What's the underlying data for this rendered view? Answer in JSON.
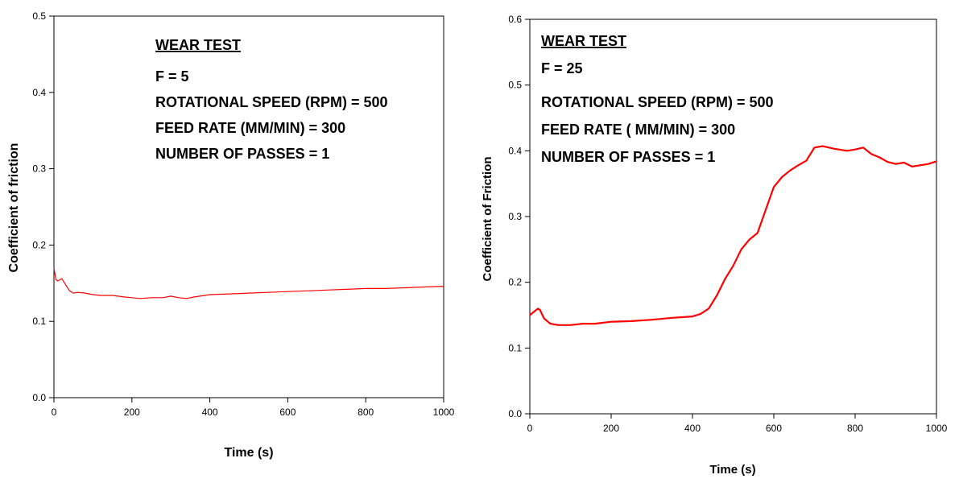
{
  "chart_data": [
    {
      "type": "line",
      "xlabel": "Time (s)",
      "ylabel": "Coefficient of friction",
      "xlim": [
        0,
        1000
      ],
      "ylim": [
        0,
        0.5
      ],
      "xticks": [
        "0",
        "200",
        "400",
        "600",
        "800",
        "1000"
      ],
      "yticks": [
        "0.0",
        "0.1",
        "0.2",
        "0.3",
        "0.4",
        "0.5"
      ],
      "grid": false,
      "annotation": {
        "title": "WEAR TEST",
        "lines": [
          "F = 5",
          "ROTATIONAL SPEED (RPM) = 500",
          "FEED RATE (MM/MIN) = 300",
          "NUMBER OF PASSES = 1"
        ]
      },
      "series": [
        {
          "color": "#ff0000",
          "x": [
            0,
            5,
            10,
            20,
            30,
            40,
            50,
            60,
            80,
            100,
            120,
            150,
            180,
            200,
            220,
            250,
            280,
            300,
            320,
            340,
            360,
            400,
            450,
            500,
            550,
            600,
            650,
            700,
            750,
            800,
            850,
            900,
            950,
            1000
          ],
          "y": [
            0.17,
            0.155,
            0.153,
            0.156,
            0.148,
            0.14,
            0.137,
            0.138,
            0.137,
            0.135,
            0.134,
            0.134,
            0.132,
            0.131,
            0.13,
            0.131,
            0.131,
            0.133,
            0.131,
            0.13,
            0.132,
            0.135,
            0.136,
            0.137,
            0.138,
            0.139,
            0.14,
            0.141,
            0.142,
            0.143,
            0.143,
            0.144,
            0.145,
            0.146
          ]
        }
      ]
    },
    {
      "type": "line",
      "xlabel": "Time (s)",
      "ylabel": "Coefficient of Friction",
      "xlim": [
        0,
        1000
      ],
      "ylim": [
        0,
        0.6
      ],
      "xticks": [
        "0",
        "200",
        "400",
        "600",
        "800",
        "1000"
      ],
      "yticks": [
        "0.0",
        "0.1",
        "0.2",
        "0.3",
        "0.4",
        "0.5",
        "0.6"
      ],
      "grid": false,
      "annotation": {
        "title": "WEAR TEST",
        "lines": [
          "F = 25",
          "ROTATIONAL SPEED (RPM) = 500",
          "FEED RATE ( MM/MIN) = 300",
          "NUMBER OF PASSES = 1"
        ]
      },
      "series": [
        {
          "color": "#ff0000",
          "x": [
            0,
            10,
            20,
            25,
            35,
            50,
            70,
            100,
            130,
            160,
            200,
            250,
            300,
            350,
            400,
            420,
            440,
            460,
            480,
            500,
            520,
            540,
            560,
            580,
            600,
            620,
            640,
            660,
            680,
            700,
            720,
            750,
            780,
            800,
            820,
            840,
            860,
            880,
            900,
            920,
            940,
            960,
            980,
            1000
          ],
          "y": [
            0.15,
            0.155,
            0.16,
            0.158,
            0.145,
            0.137,
            0.135,
            0.135,
            0.137,
            0.137,
            0.14,
            0.141,
            0.143,
            0.146,
            0.148,
            0.152,
            0.16,
            0.18,
            0.205,
            0.225,
            0.25,
            0.265,
            0.275,
            0.31,
            0.345,
            0.36,
            0.37,
            0.378,
            0.385,
            0.405,
            0.407,
            0.403,
            0.4,
            0.402,
            0.405,
            0.395,
            0.39,
            0.383,
            0.38,
            0.382,
            0.376,
            0.378,
            0.38,
            0.384
          ]
        }
      ]
    }
  ]
}
